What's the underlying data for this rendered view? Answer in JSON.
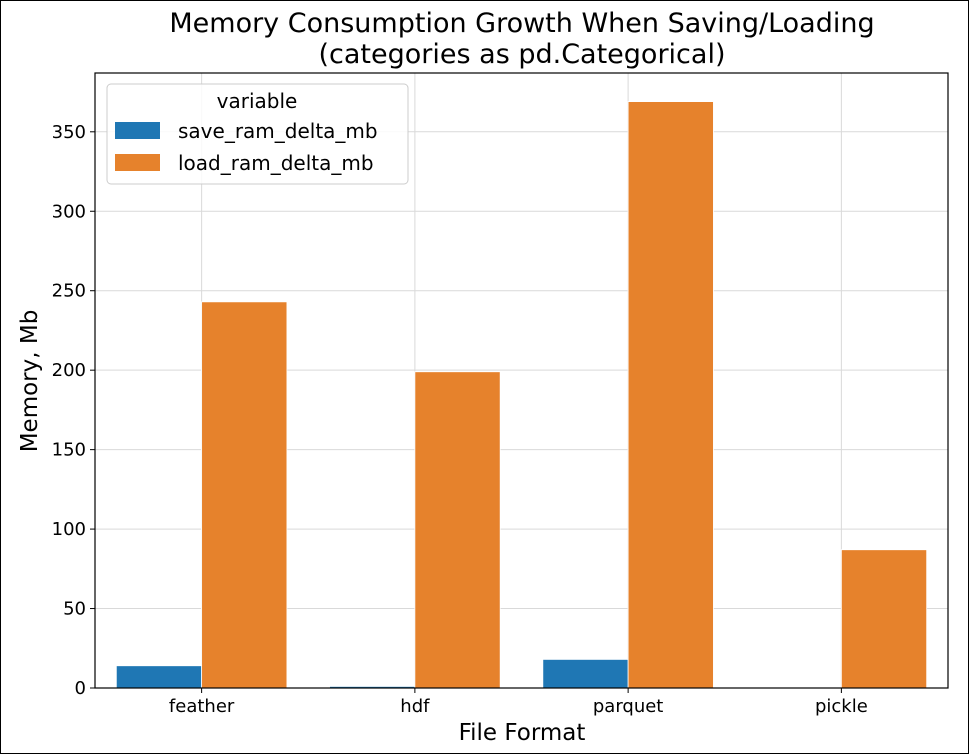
{
  "chart_data": {
    "type": "bar",
    "title": "Memory Consumption Growth When Saving/Loading",
    "subtitle": "(categories as pd.Categorical)",
    "xlabel": "File Format",
    "ylabel": "Memory, Mb",
    "categories": [
      "feather",
      "hdf",
      "parquet",
      "pickle"
    ],
    "series": [
      {
        "name": "save_ram_delta_mb",
        "values": [
          14,
          1,
          18,
          0
        ],
        "color": "#1f77b4"
      },
      {
        "name": "load_ram_delta_mb",
        "values": [
          243,
          199,
          369,
          87
        ],
        "color": "#e6822c"
      }
    ],
    "ylim": [
      0,
      387
    ],
    "yticks": [
      0,
      50,
      100,
      150,
      200,
      250,
      300,
      350
    ],
    "grid": true,
    "legend": {
      "title": "variable",
      "placement": "top-left"
    }
  }
}
